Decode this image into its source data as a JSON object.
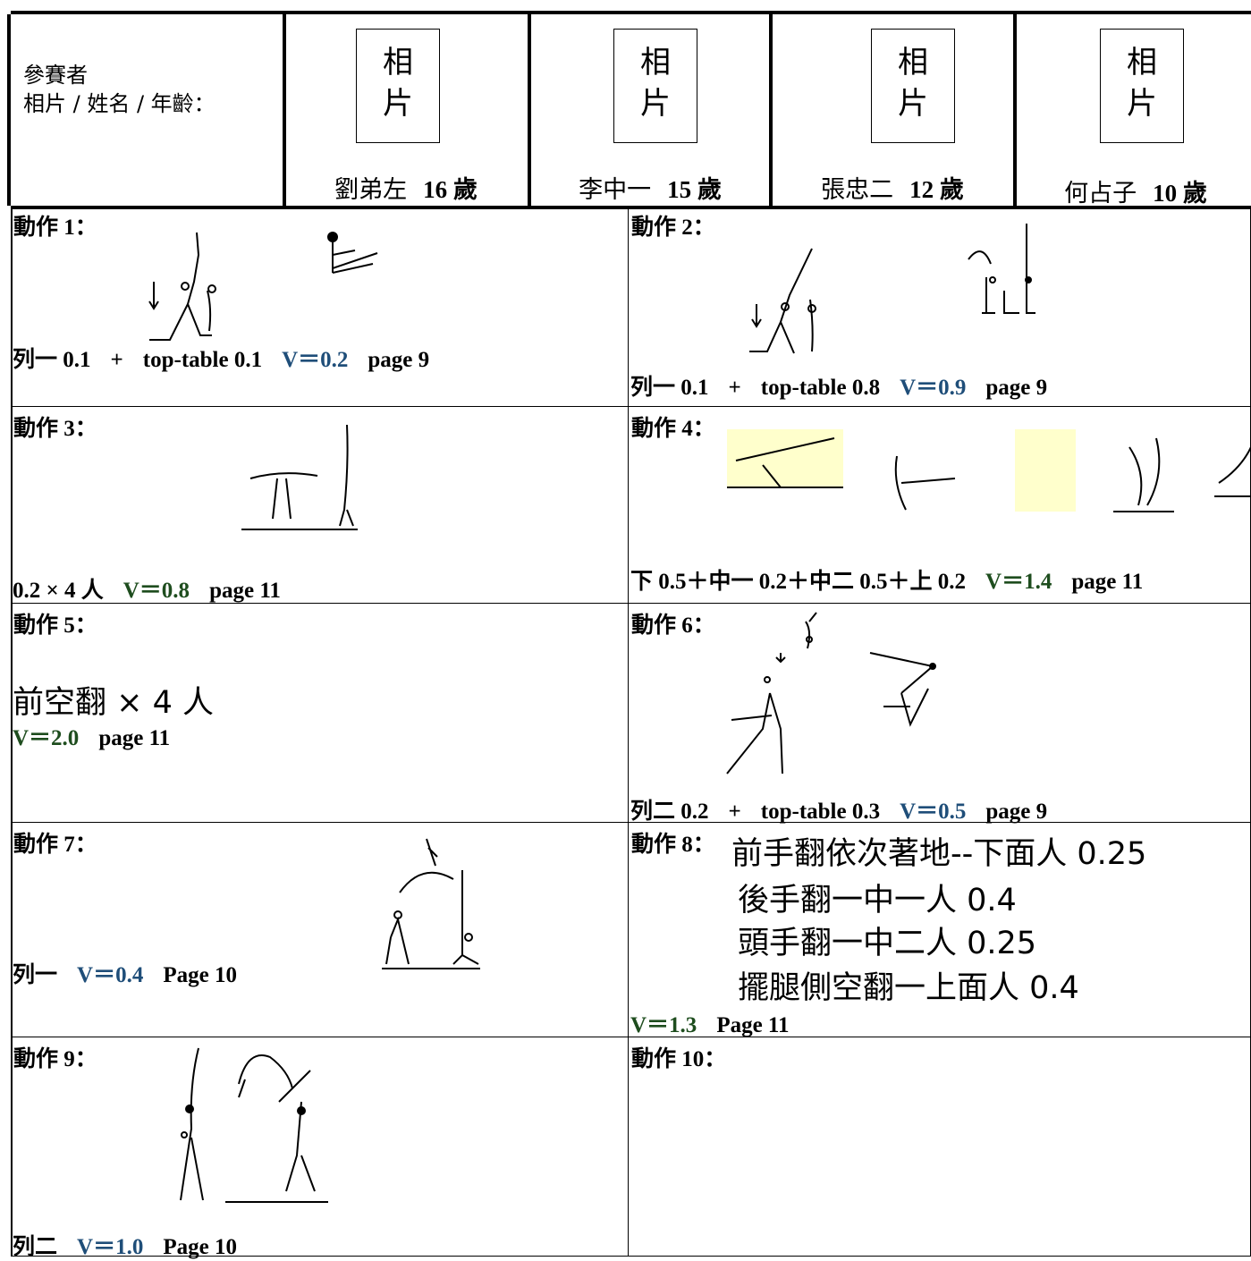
{
  "header": {
    "label_lines": [
      "參賽者",
      "相片 / 姓名 / 年齡："
    ],
    "participants": [
      {
        "photo": [
          "相",
          "片"
        ],
        "name": "劉弟左",
        "age": "16 歲"
      },
      {
        "photo": [
          "相",
          "片"
        ],
        "name": "李中一",
        "age": "15 歲"
      },
      {
        "photo": [
          "相",
          "片"
        ],
        "name": "張忠二",
        "age": "12 歲"
      },
      {
        "photo": [
          "相",
          "片"
        ],
        "name": "何占子",
        "age": "10 歲"
      }
    ]
  },
  "moves": [
    {
      "label": "動作 1：",
      "formula": [
        {
          "text": "列一 0.1"
        },
        {
          "text": "+"
        },
        {
          "text": "top-table 0.1"
        },
        {
          "text": "V＝0.2",
          "color": "#1f4e79"
        },
        {
          "text": "page 9"
        }
      ]
    },
    {
      "label": "動作 2：",
      "formula": [
        {
          "text": "列一 0.1"
        },
        {
          "text": "+"
        },
        {
          "text": "top-table 0.8"
        },
        {
          "text": "V＝0.9",
          "color": "#1f4e79"
        },
        {
          "text": "page 9"
        }
      ]
    },
    {
      "label": "動作 3：",
      "formula": [
        {
          "text": "0.2 × 4 人"
        },
        {
          "text": "V＝0.8",
          "color": "#1e4d1e"
        },
        {
          "text": "page 11"
        }
      ]
    },
    {
      "label": "動作 4：",
      "formula": [
        {
          "text": "下 0.5＋中一 0.2＋中二 0.5＋上 0.2"
        },
        {
          "text": "V＝1.4",
          "color": "#1e4d1e"
        },
        {
          "text": "page 11"
        }
      ]
    },
    {
      "label": "動作 5：",
      "lines": [
        "前空翻 × 4 人"
      ],
      "formula": [
        {
          "text": "V＝2.0",
          "color": "#1e4d1e"
        },
        {
          "text": "page 11"
        }
      ]
    },
    {
      "label": "動作 6：",
      "formula": [
        {
          "text": "列二 0.2"
        },
        {
          "text": "+"
        },
        {
          "text": "top-table 0.3"
        },
        {
          "text": "V＝0.5",
          "color": "#1f4e79"
        },
        {
          "text": "page 9"
        }
      ]
    },
    {
      "label": "動作 7：",
      "formula": [
        {
          "text": "列一"
        },
        {
          "text": "V＝0.4",
          "color": "#1f4e79"
        },
        {
          "text": "Page 10"
        }
      ]
    },
    {
      "label": "動作 8：",
      "lines": [
        "前手翻依次著地--下面人 0.25",
        "後手翻一中一人 0.4",
        "頭手翻一中二人 0.25",
        "擺腿側空翻一上面人 0.4"
      ],
      "formula": [
        {
          "text": "V＝1.3",
          "color": "#1e4d1e"
        },
        {
          "text": "Page 11"
        }
      ]
    },
    {
      "label": "動作 9：",
      "formula": [
        {
          "text": "列二"
        },
        {
          "text": "V＝1.0",
          "color": "#1f4e79"
        },
        {
          "text": "Page 10"
        }
      ]
    },
    {
      "label": "動作 10："
    }
  ]
}
